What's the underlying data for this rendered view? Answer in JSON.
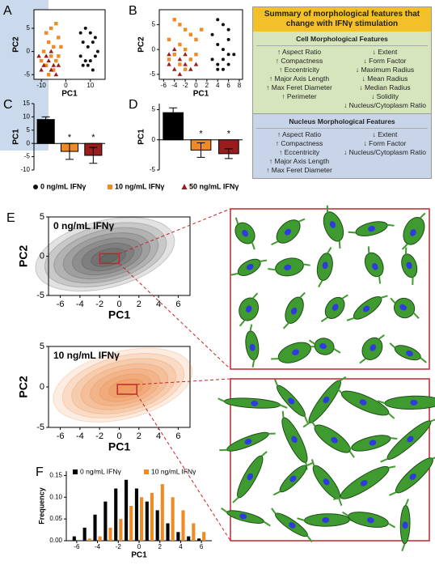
{
  "chart_data": [
    {
      "type": "scatter",
      "panel": "A",
      "xlabel": "PC1",
      "ylabel": "PC2",
      "xlim": [
        -13,
        16
      ],
      "xticks": [
        -10,
        0,
        10
      ],
      "ylim": [
        -6,
        9
      ],
      "yticks": [
        -5,
        0,
        5
      ],
      "series": [
        {
          "name": "0 ng/mL IFNγ",
          "color": "#111111",
          "marker": "circle",
          "x": [
            6,
            8,
            10,
            12,
            7,
            9,
            11,
            6,
            8,
            10,
            12,
            7,
            9,
            11,
            13
          ],
          "values": [
            4,
            5,
            4,
            3,
            2,
            1,
            2,
            -1,
            -2,
            -2,
            -1,
            -3,
            -3,
            -4,
            0
          ]
        },
        {
          "name": "10 ng/mL IFNγ",
          "color": "#f08a24",
          "marker": "square",
          "x": [
            -8,
            -6,
            -4,
            -3,
            -7,
            -5,
            -9,
            -6,
            -4,
            -8,
            -2,
            -10,
            -5,
            -3,
            -7
          ],
          "values": [
            4,
            5,
            6,
            3,
            2,
            1,
            0,
            -1,
            -2,
            -3,
            1,
            -2,
            -4,
            -1,
            -5
          ]
        },
        {
          "name": "50 ng/mL IFNγ",
          "color": "#9b1c1c",
          "marker": "triangle",
          "x": [
            -11,
            -9,
            -7,
            -6,
            -5,
            -8,
            -4,
            -10,
            -3,
            -6
          ],
          "values": [
            -1,
            -3,
            -2,
            -4,
            -3,
            -1,
            -5,
            -4,
            -3,
            0
          ]
        }
      ]
    },
    {
      "type": "scatter",
      "panel": "B",
      "xlabel": "PC1",
      "ylabel": "PC2",
      "xlim": [
        -6.8,
        8.6
      ],
      "xticks": [
        -6,
        -4,
        -2,
        0,
        2,
        4,
        6,
        8
      ],
      "ylim": [
        -6,
        8
      ],
      "yticks": [
        -5,
        0,
        5
      ],
      "series": [
        {
          "name": "0 ng/mL IFNγ",
          "color": "#111111",
          "marker": "circle",
          "x": [
            4,
            5,
            6,
            3,
            4,
            5,
            6,
            3,
            4,
            5,
            6,
            7,
            4,
            5,
            6
          ],
          "values": [
            6,
            5,
            4,
            3,
            1,
            0,
            -1,
            -2,
            -3,
            -2,
            -3,
            -1,
            -4,
            -4,
            2
          ]
        },
        {
          "name": "10 ng/mL IFNγ",
          "color": "#f08a24",
          "marker": "square",
          "x": [
            -4,
            -3,
            -2,
            -1,
            -5,
            -3,
            -2,
            -4,
            -1,
            0,
            -3,
            -5,
            -2,
            0,
            1
          ],
          "values": [
            6,
            5,
            4,
            3,
            2,
            1,
            0,
            -1,
            -2,
            -1,
            -3,
            -2,
            -4,
            2,
            4
          ]
        },
        {
          "name": "50 ng/mL IFNγ",
          "color": "#9b1c1c",
          "marker": "triangle",
          "x": [
            -5,
            -4,
            -3,
            -2,
            -4,
            -1,
            -5,
            -3,
            -2,
            0
          ],
          "values": [
            -3,
            -4,
            -2,
            -3,
            0,
            -4,
            -1,
            -5,
            -1,
            -3
          ]
        }
      ]
    },
    {
      "type": "bar",
      "panel": "C",
      "ylabel": "PC1",
      "categories": [
        null,
        null,
        null
      ],
      "values": [
        9,
        -3,
        -4.5
      ],
      "errors": [
        1,
        3,
        3
      ],
      "colors": [
        "#000000",
        "#f08a24",
        "#9b1c1c"
      ],
      "significance": [
        null,
        "*",
        "*"
      ],
      "ylim": [
        -10,
        15
      ],
      "yticks": [
        -10,
        -5,
        0,
        5,
        10,
        15
      ]
    },
    {
      "type": "bar",
      "panel": "D",
      "ylabel": "PC1",
      "categories": [
        null,
        null,
        null
      ],
      "values": [
        4.5,
        -1.7,
        -2.3
      ],
      "errors": [
        0.8,
        1.2,
        0.8
      ],
      "colors": [
        "#000000",
        "#f08a24",
        "#9b1c1c"
      ],
      "significance": [
        null,
        "*",
        "*"
      ],
      "ylim": [
        -5,
        6
      ],
      "yticks": [
        -5,
        0,
        5
      ]
    },
    {
      "type": "density",
      "panel": "E",
      "title": "0 ng/mL IFNγ",
      "xlabel": "PC1",
      "ylabel": "PC2",
      "color": "#222222",
      "peak_x": -1,
      "peak_y": -0.3,
      "xlim": [
        -7.2,
        7.2
      ],
      "xticks": [
        -6,
        -4,
        -2,
        0,
        2,
        4,
        6
      ],
      "ylim": [
        -5,
        5
      ],
      "yticks": [
        -5,
        0,
        5
      ]
    },
    {
      "type": "density",
      "title": "10 ng/mL IFNγ",
      "xlabel": "PC1",
      "ylabel": "PC2",
      "color": "#e8701a",
      "peak_x": 0.8,
      "peak_y": -0.3,
      "xlim": [
        -7.2,
        7.2
      ],
      "xticks": [
        -6,
        -4,
        -2,
        0,
        2,
        4,
        6
      ],
      "ylim": [
        -5,
        5
      ],
      "yticks": [
        -5,
        0,
        5
      ]
    },
    {
      "type": "histogram",
      "panel": "F",
      "xlabel": "PC1",
      "ylabel": "Frequency",
      "x": [
        -6,
        -5,
        -4,
        -3,
        -2,
        -1,
        0,
        1,
        2,
        3,
        4,
        5,
        6
      ],
      "xlim": [
        -7,
        7
      ],
      "xticks": [
        -6,
        -4,
        -2,
        0,
        2,
        4,
        6
      ],
      "ylim": [
        0,
        0.16
      ],
      "yticks": [
        {
          "value": 0,
          "label": "0.00"
        },
        {
          "value": 0.05,
          "label": "0.05"
        },
        {
          "value": 0.1,
          "label": "0.10"
        },
        {
          "value": 0.15,
          "label": "0.15"
        }
      ],
      "series": [
        {
          "name": "0 ng/mL IFNγ",
          "color": "#000000",
          "values": [
            0.01,
            0.03,
            0.06,
            0.09,
            0.12,
            0.14,
            0.12,
            0.09,
            0.07,
            0.04,
            0.02,
            0.01,
            0.005
          ]
        },
        {
          "name": "10 ng/mL IFNγ",
          "color": "#f08a24",
          "values": [
            0,
            0.005,
            0.01,
            0.03,
            0.05,
            0.08,
            0.1,
            0.11,
            0.13,
            0.1,
            0.07,
            0.04,
            0.02
          ]
        }
      ]
    }
  ],
  "summary": {
    "title": "Summary of morphological features that change with IFNγ stimulation",
    "cell_header": "Cell Morphological Features",
    "cell_increase": [
      "↑ Aspect Ratio",
      "↑ Compactness",
      "↑ Eccentricity",
      "↑ Major Axis Length",
      "↑ Max Feret Diameter",
      "↑ Perimeter"
    ],
    "cell_decrease": [
      "↓ Extent",
      "↓ Form Factor",
      "↓ Maximum Radius",
      "↓ Mean Radius",
      "↓ Median Radius",
      "↓ Solidity",
      "↓ Nucleus/Cytoplasm Ratio"
    ],
    "nucleus_header": "Nucleus Morphological Features",
    "nucleus_increase": [
      "↑ Aspect Ratio",
      "↑ Compactness",
      "↑ Eccentricity",
      "↑ Major Axis Length",
      "↑ Max Feret Diameter"
    ],
    "nucleus_decrease": [
      "↓ Extent",
      "↓ Form Factor",
      "↓ Nucleus/Cytoplasm Ratio"
    ]
  }
}
